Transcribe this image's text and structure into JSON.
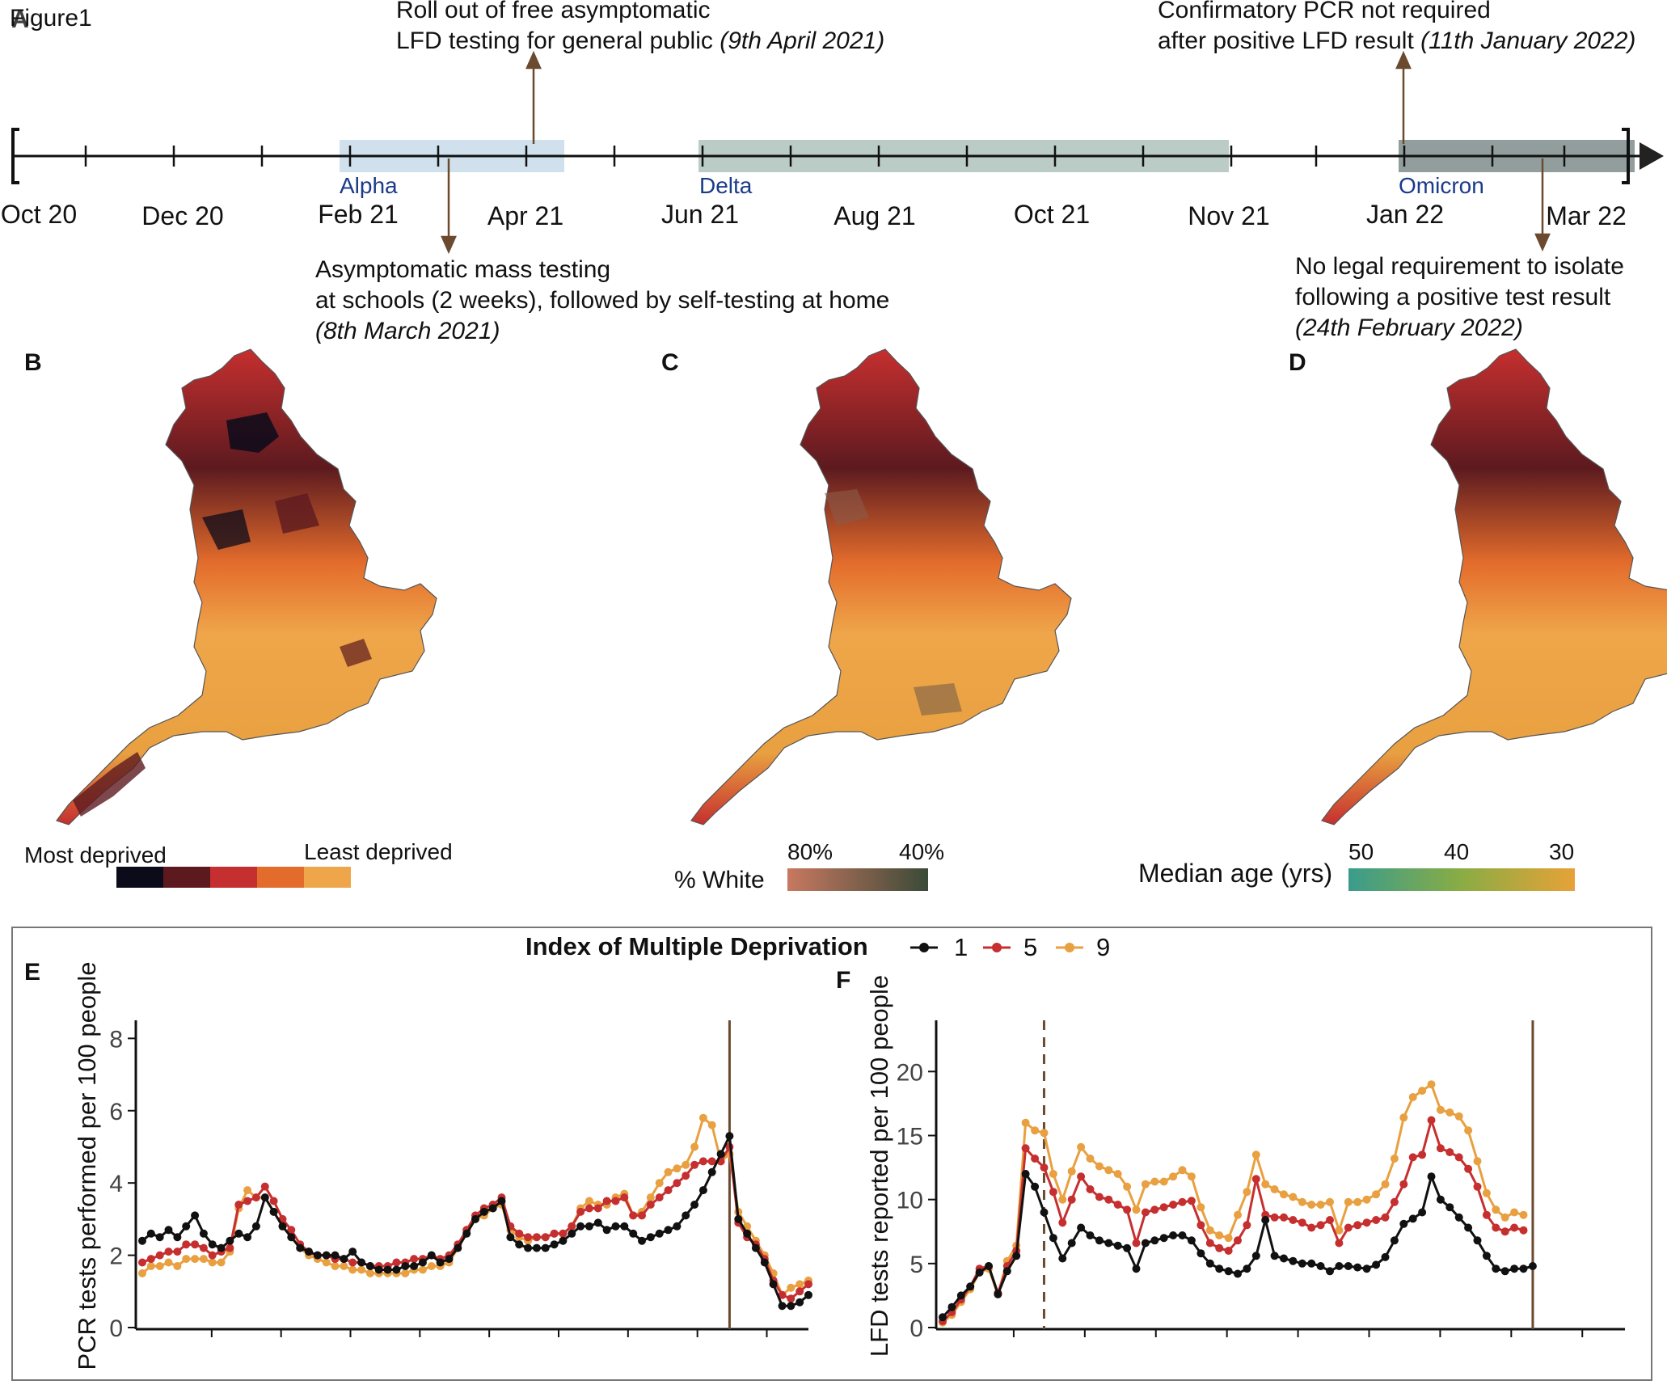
{
  "figure_label": "Figure1",
  "panels": {
    "a": "A",
    "b": "B",
    "c": "C",
    "d": "D",
    "e": "E",
    "f": "F"
  },
  "timeline": {
    "months": [
      "Oct 20",
      "Dec 20",
      "Feb 21",
      "Apr 21",
      "Jun 21",
      "Aug 21",
      "Oct 21",
      "Nov 21",
      "Jan 22",
      "Mar 22"
    ],
    "variants": {
      "alpha": "Alpha",
      "delta": "Delta",
      "omicron": "Omicron"
    },
    "annotations": {
      "lfd_rollout_1": "Roll out of free asymptomatic",
      "lfd_rollout_2": "LFD testing for general public",
      "lfd_rollout_date": "(9th April 2021)",
      "schools_1": "Asymptomatic mass testing",
      "schools_2": "at schools (2 weeks), followed by self-testing at home",
      "schools_date": "(8th March 2021)",
      "pcr_1": "Confirmatory PCR not required",
      "pcr_2": "after positive LFD result",
      "pcr_date": "(11th January 2022)",
      "isolate_1": "No legal requirement to isolate",
      "isolate_2": "following a positive test result",
      "isolate_date": "(24th February 2022)"
    }
  },
  "maps": {
    "deprivation": {
      "most": "Most deprived",
      "least": "Least deprived",
      "colors": [
        "#0b0b1a",
        "#5c1a1f",
        "#c62f2f",
        "#e36c2c",
        "#efa64a"
      ]
    },
    "white": {
      "title": "% White",
      "tick_80": "80%",
      "tick_40": "40%",
      "colors": [
        "#c87860",
        "#3b4a38"
      ]
    },
    "age": {
      "title": "Median age (yrs)",
      "tick_50": "50",
      "tick_40": "40",
      "tick_30": "30",
      "colors": [
        "#3a9c8c",
        "#7aa84a",
        "#e6a238"
      ]
    }
  },
  "legend": {
    "title": "Index of Multiple Deprivation",
    "items": [
      {
        "label": "1",
        "color": "#111111"
      },
      {
        "label": "5",
        "color": "#c62f2f"
      },
      {
        "label": "9",
        "color": "#e8a040"
      }
    ]
  },
  "chart_data": [
    {
      "type": "line",
      "panel": "E",
      "ylabel": "PCR tests performed per 100 people",
      "ylim": [
        0,
        8.5
      ],
      "yticks": [
        0,
        2,
        4,
        6,
        8
      ],
      "xlim": [
        0,
        76
      ],
      "vlines": [
        {
          "x": 67,
          "style": "solid"
        }
      ],
      "series": [
        {
          "name": "1",
          "values": [
            2.4,
            2.6,
            2.5,
            2.7,
            2.5,
            2.8,
            3.1,
            2.6,
            2.3,
            2.2,
            2.4,
            2.6,
            2.5,
            2.8,
            3.6,
            3.2,
            2.8,
            2.5,
            2.2,
            2.1,
            2.0,
            2.0,
            2.0,
            1.9,
            2.1,
            1.8,
            1.7,
            1.6,
            1.6,
            1.6,
            1.7,
            1.7,
            1.8,
            2.0,
            1.8,
            1.9,
            2.2,
            2.6,
            3.0,
            3.2,
            3.3,
            3.5,
            2.5,
            2.3,
            2.2,
            2.2,
            2.2,
            2.3,
            2.4,
            2.6,
            2.8,
            2.8,
            2.9,
            2.7,
            2.8,
            2.8,
            2.6,
            2.4,
            2.5,
            2.6,
            2.7,
            2.8,
            3.1,
            3.4,
            3.8,
            4.3,
            4.8,
            5.3,
            3.0,
            2.6,
            2.2,
            1.8,
            1.2,
            0.6,
            0.6,
            0.7,
            0.9
          ]
        },
        {
          "name": "5",
          "values": [
            1.8,
            1.9,
            2.0,
            2.1,
            2.1,
            2.3,
            2.3,
            2.2,
            2.0,
            2.1,
            2.2,
            3.4,
            3.5,
            3.6,
            3.9,
            3.5,
            3.0,
            2.7,
            2.3,
            2.1,
            2.0,
            2.0,
            1.9,
            1.9,
            1.8,
            1.8,
            1.7,
            1.7,
            1.7,
            1.8,
            1.8,
            1.9,
            1.9,
            2.0,
            1.9,
            2.0,
            2.3,
            2.7,
            3.1,
            3.3,
            3.4,
            3.6,
            2.8,
            2.6,
            2.5,
            2.5,
            2.5,
            2.6,
            2.6,
            2.8,
            3.2,
            3.3,
            3.3,
            3.5,
            3.5,
            3.6,
            3.1,
            3.1,
            3.4,
            3.6,
            3.8,
            4.0,
            4.2,
            4.5,
            4.6,
            4.6,
            4.6,
            5.0,
            2.9,
            2.5,
            2.3,
            1.9,
            1.3,
            0.9,
            0.8,
            1.0,
            1.2
          ]
        },
        {
          "name": "9",
          "values": [
            1.5,
            1.7,
            1.7,
            1.8,
            1.7,
            1.9,
            1.9,
            1.9,
            1.8,
            1.8,
            2.1,
            3.3,
            3.8,
            3.6,
            3.6,
            3.2,
            2.8,
            2.5,
            2.2,
            2.0,
            1.9,
            1.8,
            1.7,
            1.7,
            1.6,
            1.6,
            1.5,
            1.5,
            1.5,
            1.5,
            1.5,
            1.6,
            1.6,
            1.7,
            1.7,
            1.8,
            2.2,
            2.7,
            3.0,
            3.1,
            3.3,
            3.4,
            2.7,
            2.5,
            2.4,
            2.5,
            2.5,
            2.6,
            2.6,
            2.8,
            3.3,
            3.5,
            3.4,
            3.4,
            3.6,
            3.7,
            3.1,
            3.2,
            3.6,
            4.0,
            4.3,
            4.4,
            4.5,
            5.0,
            5.8,
            5.6,
            4.6,
            4.8,
            3.2,
            2.8,
            2.4,
            2.0,
            1.5,
            0.9,
            1.1,
            1.2,
            1.3
          ]
        }
      ]
    },
    {
      "type": "line",
      "panel": "F",
      "ylabel": "LFD tests reported per 100 people",
      "ylim": [
        0,
        24
      ],
      "yticks": [
        0,
        5,
        10,
        15,
        20
      ],
      "xlim": [
        0,
        74
      ],
      "vlines": [
        {
          "x": 11,
          "style": "dashed"
        },
        {
          "x": 64,
          "style": "solid"
        }
      ],
      "series": [
        {
          "name": "1",
          "values": [
            0.8,
            1.6,
            2.5,
            3.2,
            4.3,
            4.8,
            2.6,
            4.4,
            5.6,
            12.0,
            11.0,
            9.0,
            7.0,
            5.4,
            6.6,
            7.8,
            7.2,
            6.8,
            6.6,
            6.4,
            6.2,
            4.6,
            6.6,
            6.8,
            7.0,
            7.2,
            7.2,
            6.8,
            5.8,
            5.0,
            4.6,
            4.4,
            4.2,
            4.6,
            5.6,
            8.4,
            5.6,
            5.4,
            5.2,
            5.0,
            5.0,
            4.8,
            4.4,
            4.8,
            4.8,
            4.7,
            4.6,
            4.9,
            5.5,
            6.8,
            8.1,
            8.5,
            9.0,
            11.8,
            10.0,
            9.4,
            8.6,
            7.8,
            6.8,
            5.6,
            4.6,
            4.4,
            4.6,
            4.6,
            4.8
          ]
        },
        {
          "name": "5",
          "values": [
            0.5,
            1.2,
            2.2,
            3.2,
            4.6,
            4.8,
            2.7,
            4.8,
            6.0,
            14.0,
            13.2,
            12.5,
            10.6,
            8.2,
            10.0,
            11.8,
            10.8,
            10.2,
            10.0,
            9.6,
            9.2,
            6.6,
            9.0,
            9.2,
            9.4,
            9.6,
            9.8,
            9.9,
            8.0,
            6.6,
            6.2,
            6.0,
            6.8,
            8.0,
            11.6,
            8.8,
            8.6,
            8.6,
            8.4,
            8.2,
            7.8,
            8.0,
            8.4,
            6.6,
            7.8,
            8.0,
            8.2,
            8.4,
            8.6,
            9.8,
            11.2,
            13.3,
            13.5,
            16.2,
            14.0,
            13.7,
            13.3,
            12.4,
            11.0,
            8.8,
            7.8,
            7.5,
            7.8,
            7.6
          ]
        },
        {
          "name": "9",
          "values": [
            0.4,
            1.0,
            2.0,
            3.0,
            4.3,
            4.6,
            2.6,
            5.2,
            6.4,
            16.0,
            15.4,
            15.2,
            12.0,
            10.0,
            12.2,
            14.1,
            13.2,
            12.6,
            12.3,
            12.0,
            11.0,
            9.2,
            11.2,
            11.4,
            11.4,
            11.8,
            12.3,
            11.8,
            9.4,
            7.6,
            7.2,
            7.0,
            8.8,
            10.6,
            13.5,
            11.2,
            10.8,
            10.4,
            10.2,
            9.8,
            9.6,
            9.6,
            9.8,
            7.6,
            9.8,
            9.8,
            10.0,
            10.4,
            11.2,
            13.2,
            16.4,
            18.0,
            18.5,
            19.0,
            17.0,
            16.8,
            16.5,
            15.4,
            13.0,
            10.5,
            9.2,
            8.6,
            9.0,
            8.8
          ]
        }
      ]
    }
  ]
}
